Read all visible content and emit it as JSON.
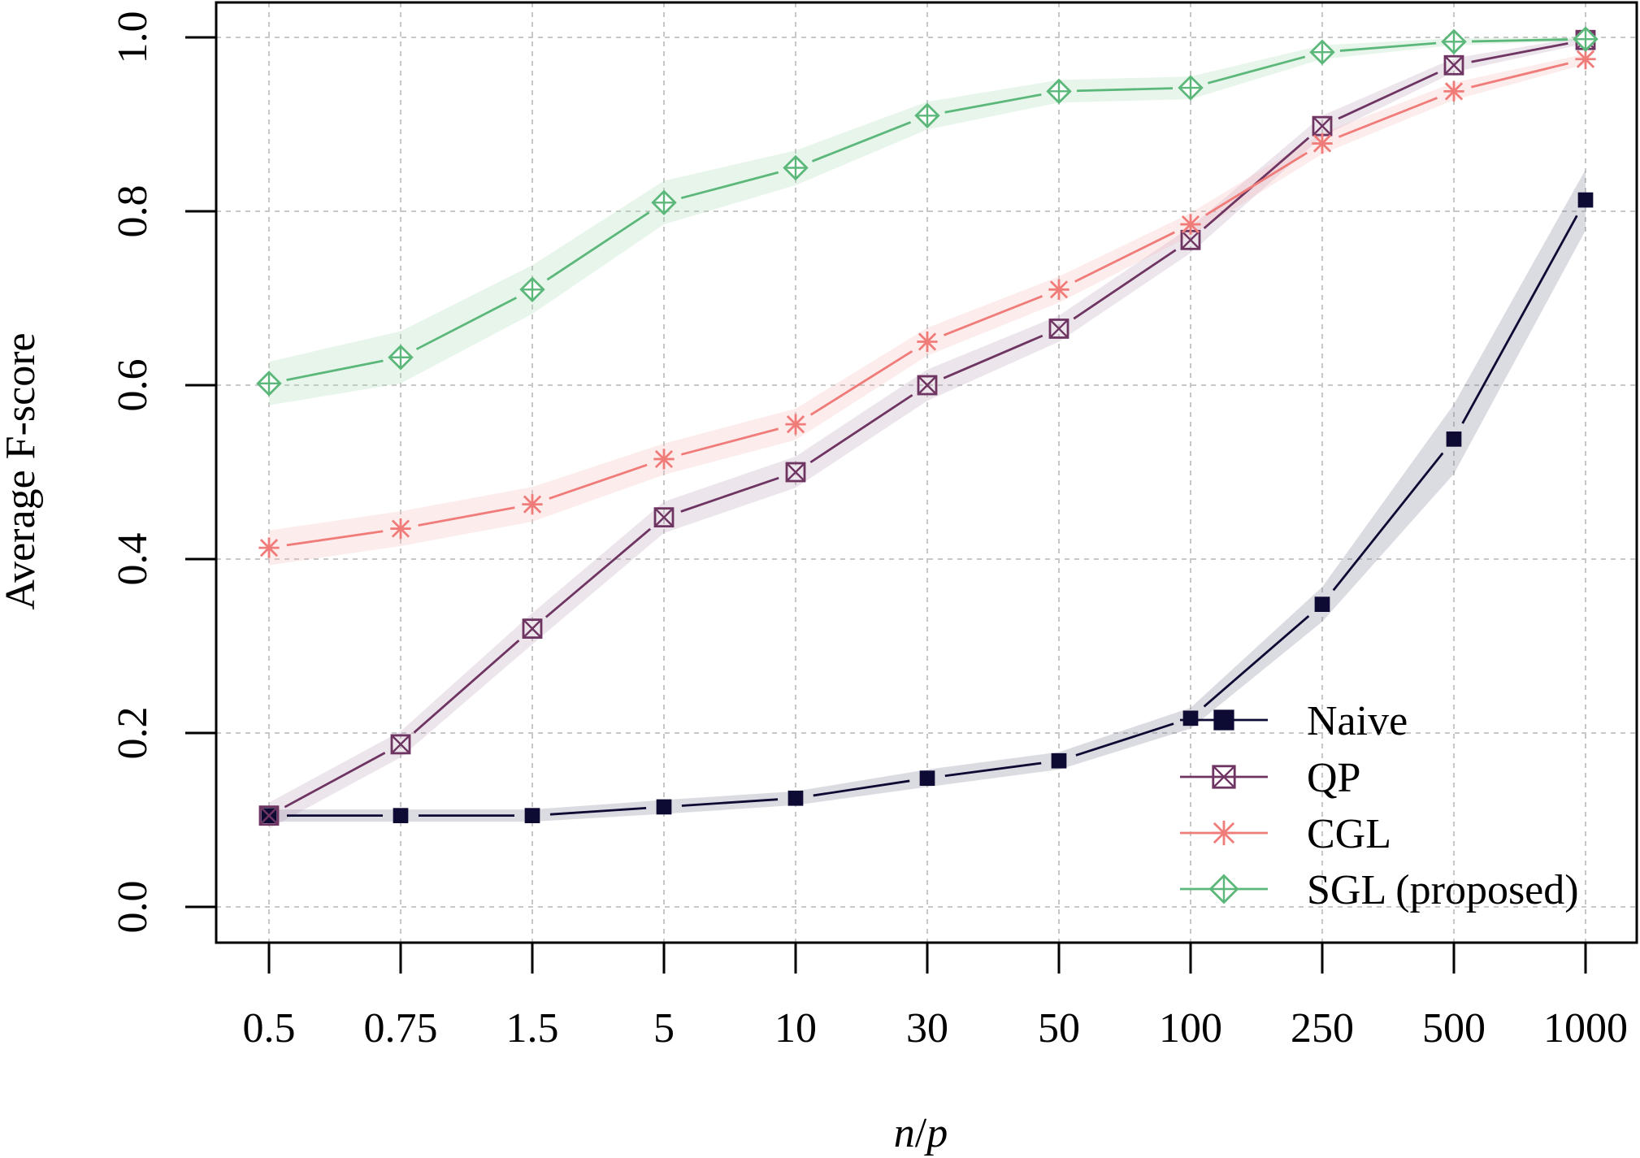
{
  "chart_data": {
    "type": "line",
    "xlabel": "n/p",
    "ylabel": "Average F-score",
    "ylim": [
      0,
      1
    ],
    "y_ticks": [
      "0.0",
      "0.2",
      "0.4",
      "0.6",
      "0.8",
      "1.0"
    ],
    "x_ticks": [
      "0.5",
      "0.75",
      "1.5",
      "5",
      "10",
      "30",
      "50",
      "100",
      "250",
      "500",
      "1000"
    ],
    "grid": true,
    "legend_position": "bottom-right",
    "series": [
      {
        "name": "Naive",
        "marker": "filled-square",
        "color": "#0d0b33",
        "band_color": "#6f6e8a",
        "values": [
          0.105,
          0.105,
          0.105,
          0.115,
          0.125,
          0.148,
          0.168,
          0.217,
          0.348,
          0.538,
          0.813
        ],
        "band": [
          0.007,
          0.007,
          0.007,
          0.008,
          0.008,
          0.01,
          0.01,
          0.012,
          0.02,
          0.04,
          0.035
        ]
      },
      {
        "name": "QP",
        "marker": "square-x",
        "color": "#6e3462",
        "band_color": "#b496b2",
        "values": [
          0.105,
          0.187,
          0.32,
          0.448,
          0.5,
          0.6,
          0.665,
          0.767,
          0.898,
          0.968,
          0.997
        ],
        "band": [
          0.015,
          0.015,
          0.018,
          0.018,
          0.018,
          0.018,
          0.015,
          0.015,
          0.012,
          0.008,
          0.004
        ]
      },
      {
        "name": "CGL",
        "marker": "asterisk",
        "color": "#f07c7a",
        "band_color": "#f6b5b3",
        "values": [
          0.413,
          0.435,
          0.463,
          0.515,
          0.555,
          0.65,
          0.71,
          0.785,
          0.878,
          0.938,
          0.975
        ],
        "band": [
          0.02,
          0.02,
          0.02,
          0.018,
          0.018,
          0.016,
          0.015,
          0.013,
          0.012,
          0.01,
          0.006
        ]
      },
      {
        "name": "SGL (proposed)",
        "marker": "diamond-plus",
        "color": "#5cb87a",
        "band_color": "#9fd8b0",
        "values": [
          0.602,
          0.632,
          0.71,
          0.81,
          0.85,
          0.91,
          0.938,
          0.942,
          0.983,
          0.995,
          0.998
        ],
        "band": [
          0.025,
          0.03,
          0.028,
          0.025,
          0.02,
          0.016,
          0.013,
          0.013,
          0.008,
          0.004,
          0.002
        ]
      }
    ]
  }
}
